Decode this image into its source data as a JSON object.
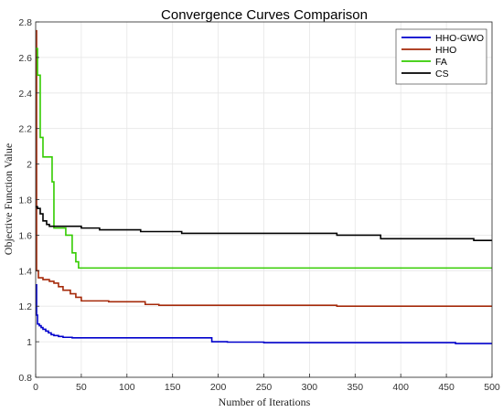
{
  "chart_data": {
    "type": "line",
    "title": "Convergence Curves Comparison",
    "xlabel": "Number of Iterations",
    "ylabel": "Objective Function Value",
    "xlim": [
      0,
      500
    ],
    "ylim": [
      0.8,
      2.8
    ],
    "xticks": [
      "0",
      "50",
      "100",
      "150",
      "200",
      "250",
      "300",
      "350",
      "400",
      "450",
      "500"
    ],
    "yticks": [
      "0.8",
      "1",
      "1.2",
      "1.4",
      "1.6",
      "1.8",
      "2",
      "2.2",
      "2.4",
      "2.6",
      "2.8"
    ],
    "grid": true,
    "legend_position": "top-right",
    "series": [
      {
        "name": "HHO-GWO",
        "color": "#0000cc",
        "x": [
          0,
          1,
          2,
          4,
          6,
          8,
          11,
          14,
          17,
          20,
          25,
          30,
          40,
          50,
          100,
          150,
          190,
          193,
          210,
          250,
          400,
          460,
          500
        ],
        "y": [
          1.32,
          1.15,
          1.1,
          1.09,
          1.08,
          1.07,
          1.06,
          1.05,
          1.04,
          1.035,
          1.03,
          1.025,
          1.022,
          1.022,
          1.022,
          1.022,
          1.022,
          1.0,
          0.998,
          0.995,
          0.995,
          0.99,
          0.99
        ]
      },
      {
        "name": "HHO",
        "color": "#a52a0a",
        "x": [
          0,
          1,
          3,
          8,
          15,
          20,
          25,
          30,
          38,
          44,
          50,
          60,
          80,
          115,
          120,
          135,
          200,
          300,
          330,
          500
        ],
        "y": [
          2.75,
          1.4,
          1.36,
          1.35,
          1.34,
          1.33,
          1.31,
          1.29,
          1.27,
          1.25,
          1.23,
          1.23,
          1.225,
          1.225,
          1.21,
          1.205,
          1.205,
          1.205,
          1.2,
          1.2
        ]
      },
      {
        "name": "FA",
        "color": "#33cc00",
        "x": [
          0,
          2,
          5,
          8,
          15,
          18,
          20,
          28,
          33,
          40,
          44,
          47,
          100,
          200,
          300,
          400,
          500
        ],
        "y": [
          2.65,
          2.5,
          2.15,
          2.04,
          2.04,
          1.9,
          1.64,
          1.64,
          1.6,
          1.5,
          1.45,
          1.415,
          1.415,
          1.415,
          1.415,
          1.415,
          1.415
        ]
      },
      {
        "name": "CS",
        "color": "#000000",
        "x": [
          0,
          2,
          5,
          8,
          12,
          15,
          50,
          70,
          115,
          160,
          330,
          378,
          480,
          500
        ],
        "y": [
          1.76,
          1.75,
          1.72,
          1.68,
          1.66,
          1.65,
          1.64,
          1.63,
          1.62,
          1.61,
          1.6,
          1.58,
          1.57,
          1.57
        ]
      }
    ]
  }
}
